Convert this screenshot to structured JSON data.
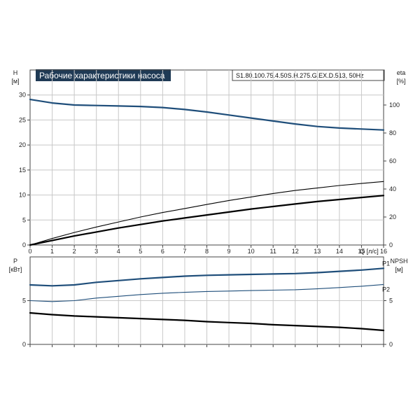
{
  "header": {
    "title": "Рабочие характеристики насоса",
    "model": "S1.80.100.75.4.50S.H.275.G.EX.D.513, 50Hz"
  },
  "colors": {
    "frame": "#444444",
    "grid": "#c8c8c8",
    "blue": "#1f4e7a",
    "black": "#000000",
    "title_bg": "#1f3a55"
  },
  "chart_data": [
    {
      "type": "line",
      "panel": "top",
      "xlabel": "Q [л/с]",
      "xlim": [
        0,
        16
      ],
      "xticks": [
        0,
        1,
        2,
        3,
        4,
        5,
        6,
        7,
        8,
        9,
        10,
        11,
        12,
        13,
        14,
        15,
        16
      ],
      "left_axis": {
        "label": "H",
        "unit": "[м]",
        "lim": [
          0,
          35
        ],
        "ticks": [
          0,
          5,
          10,
          15,
          20,
          25,
          30
        ]
      },
      "right_axis": {
        "label": "eta",
        "unit": "[%]",
        "lim": [
          0,
          125
        ],
        "ticks": [
          0,
          20,
          40,
          60,
          80,
          100
        ]
      },
      "grid": true,
      "series": [
        {
          "axis": "left",
          "color": "#1f4e7a",
          "width": 2.2,
          "x": [
            0,
            1,
            2,
            3,
            4,
            5,
            6,
            7,
            8,
            9,
            10,
            11,
            12,
            13,
            14,
            15,
            16
          ],
          "y": [
            29.1,
            28.4,
            28.0,
            27.9,
            27.8,
            27.7,
            27.5,
            27.1,
            26.6,
            26.0,
            25.4,
            24.8,
            24.2,
            23.7,
            23.4,
            23.2,
            23.0
          ]
        },
        {
          "axis": "left",
          "color": "#000000",
          "width": 1.1,
          "x": [
            0,
            1,
            2,
            3,
            4,
            5,
            6,
            7,
            8,
            9,
            10,
            11,
            12,
            13,
            14,
            15,
            16
          ],
          "y": [
            0,
            1.3,
            2.5,
            3.6,
            4.6,
            5.6,
            6.5,
            7.3,
            8.1,
            8.9,
            9.6,
            10.3,
            10.9,
            11.4,
            11.9,
            12.3,
            12.7
          ]
        },
        {
          "axis": "left",
          "color": "#000000",
          "width": 2.2,
          "x": [
            0,
            1,
            2,
            3,
            4,
            5,
            6,
            7,
            8,
            9,
            10,
            11,
            12,
            13,
            14,
            15,
            16
          ],
          "y": [
            0,
            0.9,
            1.8,
            2.6,
            3.4,
            4.1,
            4.8,
            5.4,
            6.0,
            6.6,
            7.2,
            7.7,
            8.2,
            8.7,
            9.1,
            9.5,
            9.9
          ]
        }
      ]
    },
    {
      "type": "line",
      "panel": "bottom",
      "xlim": [
        0,
        16
      ],
      "xticks": [
        0,
        1,
        2,
        3,
        4,
        5,
        6,
        7,
        8,
        9,
        10,
        11,
        12,
        13,
        14,
        15,
        16
      ],
      "left_axis": {
        "label": "P",
        "unit": "[кВт]",
        "lim": [
          0,
          10
        ],
        "ticks": [
          0,
          5
        ]
      },
      "right_axis": {
        "label": "NPSH",
        "unit": "[м]",
        "lim": [
          0,
          10
        ],
        "ticks": [
          0,
          5
        ]
      },
      "grid": true,
      "series": [
        {
          "name": "P1",
          "axis": "left",
          "color": "#1f4e7a",
          "width": 2.2,
          "x": [
            0,
            1,
            2,
            3,
            4,
            5,
            6,
            7,
            8,
            9,
            10,
            11,
            12,
            13,
            14,
            15,
            16
          ],
          "y": [
            6.8,
            6.7,
            6.8,
            7.1,
            7.3,
            7.5,
            7.65,
            7.8,
            7.9,
            7.95,
            8.0,
            8.05,
            8.1,
            8.2,
            8.35,
            8.5,
            8.7
          ]
        },
        {
          "name": "P2",
          "axis": "left",
          "color": "#1f4e7a",
          "width": 1.1,
          "x": [
            0,
            1,
            2,
            3,
            4,
            5,
            6,
            7,
            8,
            9,
            10,
            11,
            12,
            13,
            14,
            15,
            16
          ],
          "y": [
            5.0,
            4.9,
            5.0,
            5.3,
            5.5,
            5.7,
            5.85,
            5.95,
            6.05,
            6.1,
            6.15,
            6.2,
            6.25,
            6.35,
            6.5,
            6.65,
            6.85
          ]
        },
        {
          "axis": "right",
          "color": "#000000",
          "width": 2.2,
          "x": [
            0,
            1,
            2,
            3,
            4,
            5,
            6,
            7,
            8,
            9,
            10,
            11,
            12,
            13,
            14,
            15,
            16
          ],
          "y": [
            3.6,
            3.4,
            3.25,
            3.15,
            3.05,
            2.95,
            2.85,
            2.75,
            2.6,
            2.5,
            2.4,
            2.25,
            2.15,
            2.05,
            1.95,
            1.8,
            1.6
          ]
        }
      ]
    }
  ]
}
